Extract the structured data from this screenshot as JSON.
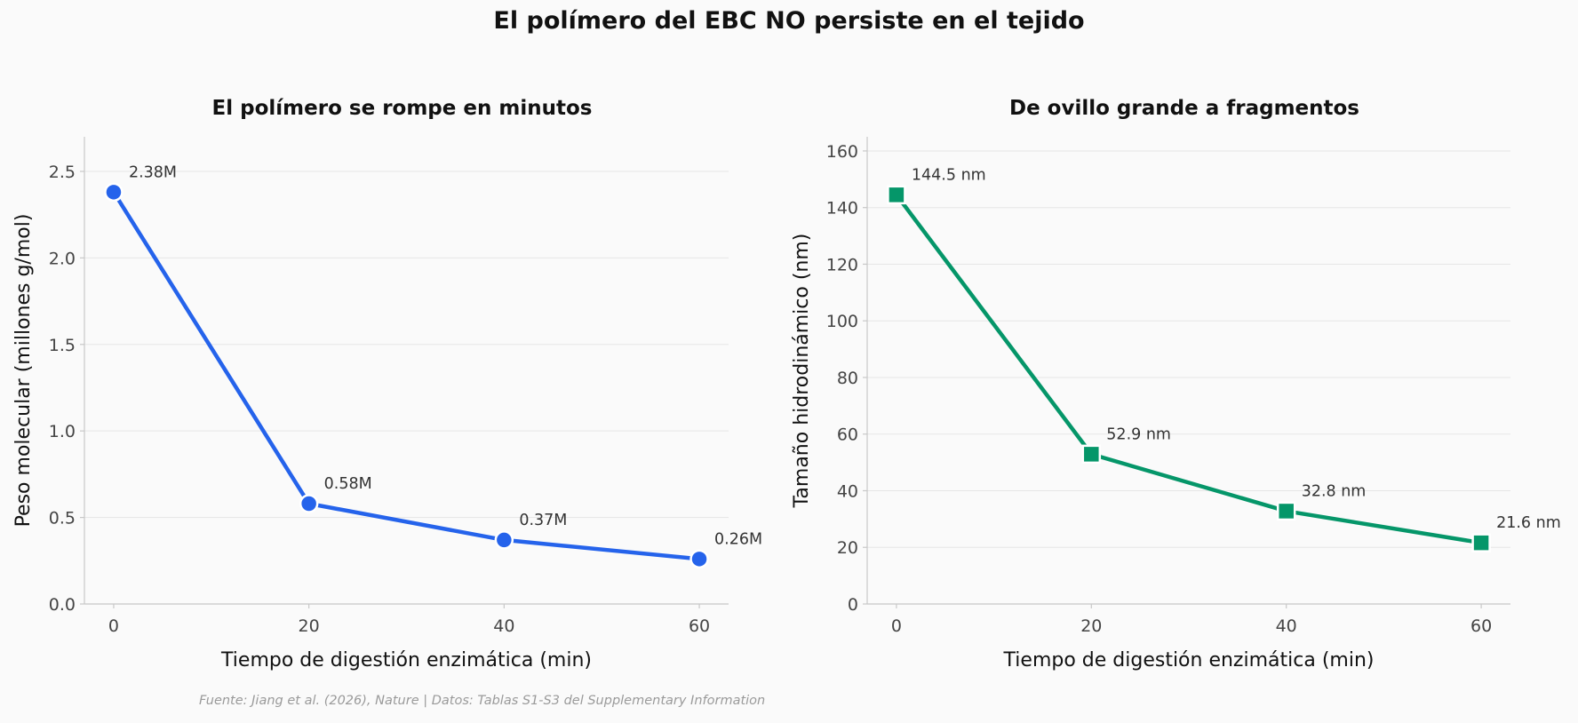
{
  "title": "El polímero del EBC NO persiste en el tejido",
  "footer": "Fuente: Jiang et al. (2026), Nature | Datos: Tablas S1-S3 del Supplementary Information",
  "chart_data": [
    {
      "type": "line",
      "title": "El polímero se rompe en minutos",
      "xlabel": "Tiempo de digestión enzimática (min)",
      "ylabel": "Peso molecular (millones g/mol)",
      "x": [
        0,
        20,
        40,
        60
      ],
      "values": [
        2.38,
        0.58,
        0.37,
        0.26
      ],
      "data_labels": [
        "2.38M",
        "0.58M",
        "0.37M",
        "0.26M"
      ],
      "xticks": [
        0,
        20,
        40,
        60
      ],
      "yticks": [
        0.0,
        0.5,
        1.0,
        1.5,
        2.0,
        2.5
      ],
      "ytick_labels": [
        "0.0",
        "0.5",
        "1.0",
        "1.5",
        "2.0",
        "2.5"
      ],
      "xlim": [
        -3,
        63
      ],
      "ylim": [
        0,
        2.7
      ],
      "marker": "circle",
      "color": "#2563eb",
      "grid": "horizontal"
    },
    {
      "type": "line",
      "title": "De ovillo grande a fragmentos",
      "xlabel": "Tiempo de digestión enzimática (min)",
      "ylabel": "Tamaño hidrodinámico (nm)",
      "x": [
        0,
        20,
        40,
        60
      ],
      "values": [
        144.5,
        52.9,
        32.8,
        21.6
      ],
      "data_labels": [
        "144.5 nm",
        "52.9 nm",
        "32.8 nm",
        "21.6 nm"
      ],
      "xticks": [
        0,
        20,
        40,
        60
      ],
      "yticks": [
        0,
        20,
        40,
        60,
        80,
        100,
        120,
        140,
        160
      ],
      "ytick_labels": [
        "0",
        "20",
        "40",
        "60",
        "80",
        "100",
        "120",
        "140",
        "160"
      ],
      "xlim": [
        -3,
        63
      ],
      "ylim": [
        0,
        165
      ],
      "marker": "square",
      "color": "#059669",
      "grid": "horizontal"
    }
  ]
}
